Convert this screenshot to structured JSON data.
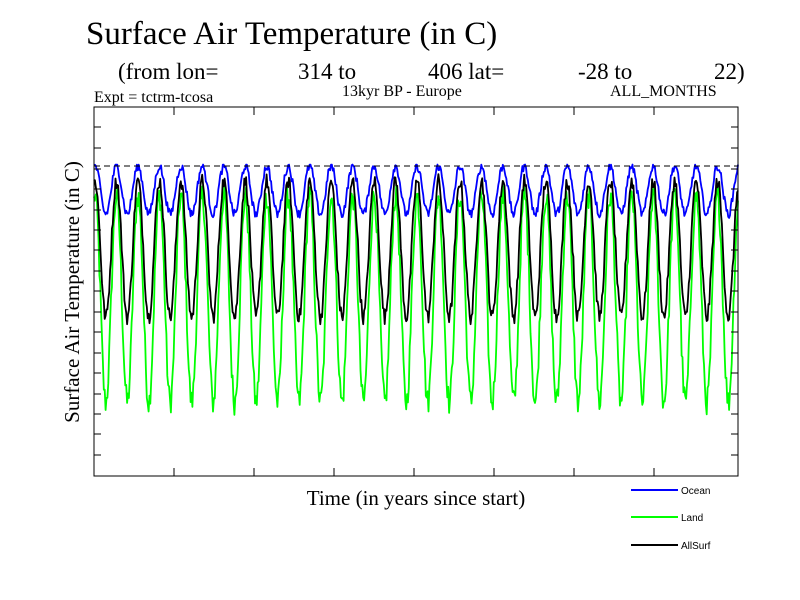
{
  "chart_data": {
    "type": "line",
    "title": "Surface Air Temperature (in C)",
    "subtitle_parts": [
      "(from lon=",
      "314 to",
      "406 lat=",
      "-28 to",
      "22)"
    ],
    "experiment": "Expt = tctrm-tcosa",
    "period_region": "13kyr BP - Europe",
    "months": "ALL_MONTHS",
    "xlabel": "Time (in years since start)",
    "ylabel": "Surface Air Temperature (in C)",
    "x_unit": "years",
    "n_years": 30,
    "grid": false,
    "legend_position": "bottom-right",
    "reference_line": {
      "style": "dashed",
      "level_fraction": 0.84
    },
    "series": [
      {
        "name": "Ocean",
        "color": "#0000ff",
        "annual_max_fraction": 0.84,
        "annual_min_fraction": 0.71
      },
      {
        "name": "Land",
        "color": "#00ff00",
        "annual_max_fraction": 0.76,
        "annual_min_fraction": 0.2
      },
      {
        "name": "AllSurf",
        "color": "#000000",
        "annual_max_fraction": 0.8,
        "annual_min_fraction": 0.43
      }
    ]
  }
}
